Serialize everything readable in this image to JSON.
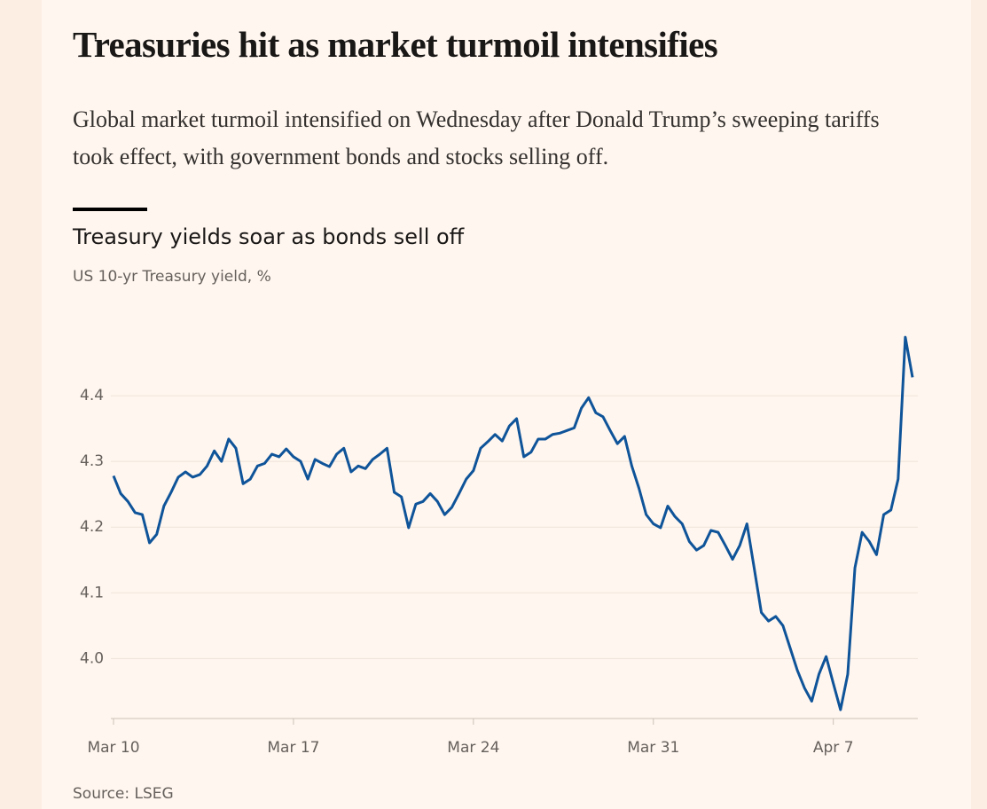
{
  "headline": "Treasuries hit as market turmoil intensifies",
  "description": "Global market turmoil intensified on Wednesday after Donald Trump’s sweeping tariffs took effect, with government bonds and stocks selling off.",
  "chart_data": {
    "type": "line",
    "title": "Treasury yields soar as bonds sell off",
    "subtitle": "US 10-yr Treasury yield, %",
    "source": "Source: LSEG",
    "color": "#0f5499",
    "grid": true,
    "ylim": [
      3.91,
      4.5
    ],
    "yticks": [
      {
        "value": 4,
        "label": "4.0"
      },
      4.1,
      4.2,
      4.3,
      4.4
    ],
    "categories": [
      "Mar 10",
      null,
      null,
      null,
      null,
      null,
      null,
      null,
      null,
      null,
      null,
      null,
      null,
      null,
      null,
      null,
      null,
      null,
      null,
      null,
      null,
      null,
      null,
      null,
      null,
      "Mar 17",
      null,
      null,
      null,
      null,
      null,
      null,
      null,
      null,
      null,
      null,
      null,
      null,
      null,
      null,
      null,
      null,
      null,
      null,
      null,
      null,
      null,
      null,
      null,
      null,
      "Mar 24",
      null,
      null,
      null,
      null,
      null,
      null,
      null,
      null,
      null,
      null,
      null,
      null,
      null,
      null,
      null,
      null,
      null,
      null,
      null,
      null,
      null,
      null,
      null,
      null,
      "Mar 31",
      null,
      null,
      null,
      null,
      null,
      null,
      null,
      null,
      null,
      null,
      null,
      null,
      null,
      null,
      null,
      null,
      null,
      null,
      null,
      null,
      null,
      null,
      null,
      null,
      "Apr 7",
      null,
      null,
      null,
      null,
      null,
      null,
      null,
      null,
      null,
      null,
      null
    ],
    "values": [
      4.278,
      4.251,
      4.239,
      4.222,
      4.219,
      4.176,
      4.189,
      4.232,
      4.253,
      4.276,
      4.284,
      4.276,
      4.28,
      4.293,
      4.316,
      4.3,
      4.334,
      4.32,
      4.266,
      4.273,
      4.293,
      4.297,
      4.311,
      4.307,
      4.319,
      4.307,
      4.3,
      4.273,
      4.303,
      4.297,
      4.292,
      4.311,
      4.32,
      4.284,
      4.293,
      4.289,
      4.303,
      4.311,
      4.32,
      4.253,
      4.246,
      4.199,
      4.235,
      4.239,
      4.251,
      4.239,
      4.219,
      4.23,
      4.251,
      4.273,
      4.286,
      4.32,
      4.33,
      4.341,
      4.331,
      4.354,
      4.365,
      4.307,
      4.314,
      4.334,
      4.334,
      4.341,
      4.343,
      4.347,
      4.351,
      4.381,
      4.397,
      4.374,
      4.368,
      4.347,
      4.327,
      4.338,
      4.293,
      4.259,
      4.219,
      4.205,
      4.199,
      4.232,
      4.216,
      4.205,
      4.178,
      4.165,
      4.172,
      4.195,
      4.192,
      4.172,
      4.151,
      4.172,
      4.205,
      4.138,
      4.07,
      4.057,
      4.064,
      4.05,
      4.016,
      3.982,
      3.955,
      3.935,
      3.976,
      4.003,
      3.962,
      3.922,
      3.976,
      4.138,
      4.192,
      4.178,
      4.158,
      4.219,
      4.226,
      4.273,
      4.489,
      4.428
    ]
  }
}
